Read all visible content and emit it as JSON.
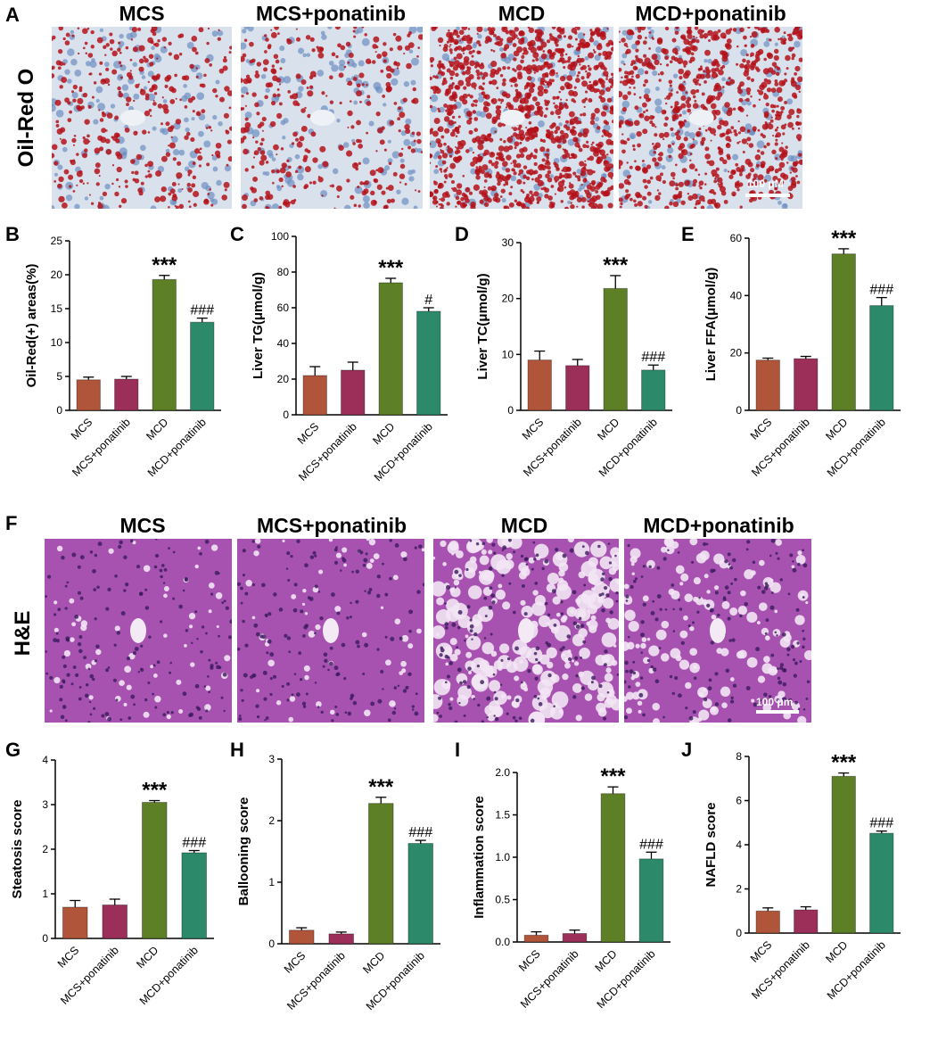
{
  "panel_letters": [
    "A",
    "B",
    "C",
    "D",
    "E",
    "F",
    "G",
    "H",
    "I",
    "J"
  ],
  "oil_red": {
    "row_label": "Oil-Red O",
    "titles": [
      "MCS",
      "MCS+ponatinib",
      "MCD",
      "MCD+ponatinib"
    ],
    "scale_bar": "100 μM",
    "colors": {
      "background": "#d9e2ec",
      "stain": "#b4121a",
      "nuclei": "#6c8fc2"
    },
    "stain_level": [
      0.18,
      0.15,
      0.85,
      0.55
    ]
  },
  "he": {
    "row_label": "H&E",
    "titles": [
      "MCS",
      "MCS+ponatinib",
      "MCD",
      "MCD+ponatinib"
    ],
    "scale_bar": "100 μm",
    "colors": {
      "background": "#a752b0",
      "vacuole": "#f3e6f4",
      "nuclei": "#3a1a5c"
    },
    "vacuole_level": [
      0.05,
      0.05,
      0.75,
      0.35
    ]
  },
  "bar_colors": [
    "#b0543a",
    "#9c2f5a",
    "#5d7f25",
    "#2c8a6a"
  ],
  "chart_data": [
    {
      "type": "bar",
      "panel": "B",
      "ylabel": "Oil-Red(+) areas(%)",
      "ylim": [
        0,
        25
      ],
      "yticks": [
        0,
        5,
        10,
        15,
        20,
        25
      ],
      "categories": [
        "MCS",
        "MCS+ponatinib",
        "MCD",
        "MCD+ponatinib"
      ],
      "values": [
        4.5,
        4.6,
        19.3,
        13.0
      ],
      "errors": [
        0.4,
        0.4,
        0.6,
        0.6
      ],
      "annotations": [
        "",
        "",
        "***",
        "###"
      ]
    },
    {
      "type": "bar",
      "panel": "C",
      "ylabel": "Liver TG(μmol/g)",
      "ylim": [
        0,
        100
      ],
      "yticks": [
        0,
        20,
        40,
        60,
        80,
        100
      ],
      "categories": [
        "MCS",
        "MCS+ponatinib",
        "MCD",
        "MCD+ponatinib"
      ],
      "values": [
        22,
        25,
        74,
        58
      ],
      "errors": [
        5,
        4.5,
        2.5,
        2
      ],
      "annotations": [
        "",
        "",
        "***",
        "#"
      ]
    },
    {
      "type": "bar",
      "panel": "D",
      "ylabel": "Liver TC(μmol/g)",
      "ylim": [
        0,
        30
      ],
      "yticks": [
        0,
        10,
        20,
        30
      ],
      "categories": [
        "MCS",
        "MCS+ponatinib",
        "MCD",
        "MCD+ponatinib"
      ],
      "values": [
        9,
        8,
        21.8,
        7.2
      ],
      "errors": [
        1.6,
        1.1,
        2.3,
        0.9
      ],
      "annotations": [
        "",
        "",
        "***",
        "###"
      ]
    },
    {
      "type": "bar",
      "panel": "E",
      "ylabel": "Liver FFA(μmol/g)",
      "ylim": [
        0,
        60
      ],
      "yticks": [
        0,
        20,
        40,
        60
      ],
      "categories": [
        "MCS",
        "MCS+ponatinib",
        "MCD",
        "MCD+ponatinib"
      ],
      "values": [
        17.5,
        18,
        54.5,
        36.5
      ],
      "errors": [
        0.7,
        0.8,
        1.8,
        2.8
      ],
      "annotations": [
        "",
        "",
        "***",
        "###"
      ]
    },
    {
      "type": "bar",
      "panel": "G",
      "ylabel": "Steatosis score",
      "ylim": [
        0,
        4
      ],
      "yticks": [
        0,
        1,
        2,
        3,
        4
      ],
      "categories": [
        "MCS",
        "MCS+ponatinib",
        "MCD",
        "MCD+ponatinib"
      ],
      "values": [
        0.7,
        0.75,
        3.05,
        1.92
      ],
      "errors": [
        0.15,
        0.13,
        0.04,
        0.05
      ],
      "annotations": [
        "",
        "",
        "***",
        "###"
      ]
    },
    {
      "type": "bar",
      "panel": "H",
      "ylabel": "Ballooning score",
      "ylim": [
        0,
        3
      ],
      "yticks": [
        0,
        1,
        2,
        3
      ],
      "categories": [
        "MCS",
        "MCS+ponatinib",
        "MCD",
        "MCD+ponatinib"
      ],
      "values": [
        0.22,
        0.16,
        2.28,
        1.63
      ],
      "errors": [
        0.04,
        0.03,
        0.1,
        0.05
      ],
      "annotations": [
        "",
        "",
        "***",
        "###"
      ]
    },
    {
      "type": "bar",
      "panel": "I",
      "ylabel": "Inflammation score",
      "ylim": [
        0,
        2
      ],
      "yticks": [
        0.0,
        0.5,
        1.0,
        1.5,
        2.0
      ],
      "tick_decimals": 1,
      "categories": [
        "MCS",
        "MCS+ponatinib",
        "MCD",
        "MCD+ponatinib"
      ],
      "values": [
        0.08,
        0.1,
        1.75,
        0.98
      ],
      "errors": [
        0.04,
        0.04,
        0.08,
        0.08
      ],
      "annotations": [
        "",
        "",
        "***",
        "###"
      ]
    },
    {
      "type": "bar",
      "panel": "J",
      "ylabel": "NAFLD score",
      "ylim": [
        0,
        8
      ],
      "yticks": [
        0,
        2,
        4,
        6,
        8
      ],
      "categories": [
        "MCS",
        "MCS+ponatinib",
        "MCD",
        "MCD+ponatinib"
      ],
      "values": [
        1.0,
        1.05,
        7.1,
        4.52
      ],
      "errors": [
        0.14,
        0.14,
        0.15,
        0.1
      ],
      "annotations": [
        "",
        "",
        "***",
        "###"
      ]
    }
  ]
}
